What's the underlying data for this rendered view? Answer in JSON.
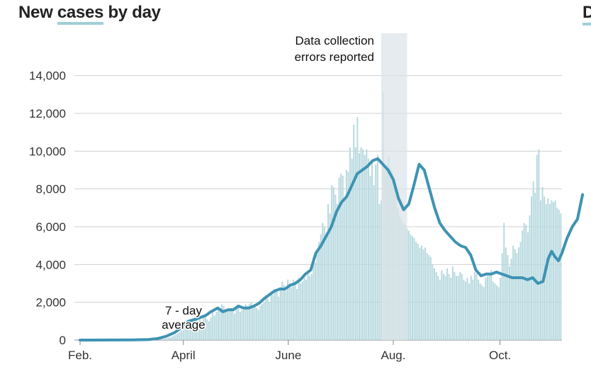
{
  "title": {
    "plain": "New ",
    "highlight": "cases",
    "rest": " by day"
  },
  "next_title_fragment": "D",
  "colors": {
    "bars": "#b7d9df",
    "line": "#3e93b3",
    "shade": "#dbe3e7",
    "grid": "#d0d0d0",
    "text": "#222222"
  },
  "chart_data": {
    "type": "bar",
    "title": "New cases by day",
    "xlabel": "",
    "ylabel": "",
    "ylim": [
      0,
      15000
    ],
    "yticks": [
      0,
      2000,
      4000,
      6000,
      8000,
      10000,
      12000,
      14000
    ],
    "ytick_labels": [
      "0",
      "2,000",
      "4,000",
      "6,000",
      "8,000",
      "10,000",
      "12,000",
      "14,000"
    ],
    "x_domain_days": [
      0,
      280
    ],
    "xticks": [
      {
        "day": 0,
        "label": "Feb."
      },
      {
        "day": 60,
        "label": "April"
      },
      {
        "day": 121,
        "label": "June"
      },
      {
        "day": 182,
        "label": "Aug."
      },
      {
        "day": 244,
        "label": "Oct."
      }
    ],
    "shaded_region": {
      "start_day": 175,
      "end_day": 190,
      "label_lines": [
        "Data collection",
        "errors reported"
      ]
    },
    "line_series": {
      "name": "7-day average",
      "label_lines": [
        "7 - day",
        "average"
      ],
      "points": [
        [
          0,
          0
        ],
        [
          30,
          10
        ],
        [
          40,
          30
        ],
        [
          45,
          80
        ],
        [
          50,
          200
        ],
        [
          55,
          400
        ],
        [
          58,
          600
        ],
        [
          60,
          800
        ],
        [
          63,
          1000
        ],
        [
          67,
          1100
        ],
        [
          70,
          1200
        ],
        [
          73,
          1300
        ],
        [
          76,
          1500
        ],
        [
          80,
          1700
        ],
        [
          83,
          1500
        ],
        [
          86,
          1600
        ],
        [
          89,
          1600
        ],
        [
          92,
          1800
        ],
        [
          95,
          1700
        ],
        [
          98,
          1700
        ],
        [
          101,
          1800
        ],
        [
          104,
          1950
        ],
        [
          107,
          2200
        ],
        [
          110,
          2400
        ],
        [
          113,
          2600
        ],
        [
          116,
          2700
        ],
        [
          119,
          2700
        ],
        [
          122,
          2900
        ],
        [
          125,
          3000
        ],
        [
          128,
          3200
        ],
        [
          131,
          3500
        ],
        [
          134,
          3700
        ],
        [
          137,
          4600
        ],
        [
          140,
          5000
        ],
        [
          143,
          5500
        ],
        [
          146,
          6000
        ],
        [
          149,
          6800
        ],
        [
          152,
          7300
        ],
        [
          155,
          7600
        ],
        [
          158,
          8200
        ],
        [
          161,
          8800
        ],
        [
          164,
          9000
        ],
        [
          167,
          9200
        ],
        [
          170,
          9500
        ],
        [
          173,
          9600
        ],
        [
          176,
          9300
        ],
        [
          179,
          9000
        ],
        [
          182,
          8500
        ],
        [
          185,
          7500
        ],
        [
          188,
          6900
        ],
        [
          191,
          7200
        ],
        [
          194,
          8200
        ],
        [
          197,
          9300
        ],
        [
          200,
          9000
        ],
        [
          203,
          8000
        ],
        [
          206,
          7000
        ],
        [
          209,
          6200
        ],
        [
          212,
          5800
        ],
        [
          215,
          5500
        ],
        [
          218,
          5200
        ],
        [
          221,
          5000
        ],
        [
          224,
          4900
        ],
        [
          227,
          4500
        ],
        [
          230,
          3700
        ],
        [
          233,
          3400
        ],
        [
          236,
          3500
        ],
        [
          239,
          3500
        ],
        [
          242,
          3600
        ],
        [
          245,
          3500
        ],
        [
          248,
          3400
        ],
        [
          251,
          3300
        ],
        [
          254,
          3300
        ],
        [
          257,
          3300
        ],
        [
          260,
          3200
        ],
        [
          263,
          3300
        ],
        [
          266,
          3000
        ],
        [
          269,
          3100
        ],
        [
          272,
          4300
        ],
        [
          274,
          4700
        ],
        [
          276,
          4400
        ],
        [
          278,
          4200
        ],
        [
          280,
          4600
        ],
        [
          283,
          5400
        ],
        [
          286,
          6000
        ],
        [
          289,
          6400
        ],
        [
          292,
          7700
        ]
      ]
    },
    "bar_series": {
      "name": "New cases",
      "note": "daily counts estimated from the bar heights",
      "values": [
        0,
        0,
        0,
        0,
        0,
        0,
        0,
        0,
        0,
        0,
        0,
        0,
        0,
        0,
        0,
        0,
        0,
        0,
        0,
        0,
        0,
        0,
        0,
        0,
        0,
        0,
        0,
        0,
        0,
        0,
        10,
        10,
        10,
        10,
        10,
        10,
        10,
        10,
        20,
        20,
        30,
        30,
        40,
        40,
        50,
        60,
        80,
        100,
        130,
        160,
        200,
        250,
        300,
        350,
        400,
        500,
        600,
        700,
        800,
        900,
        1000,
        1100,
        1200,
        1300,
        900,
        1100,
        1000,
        1300,
        1300,
        1100,
        1000,
        1200,
        1500,
        1300,
        1500,
        1600,
        1700,
        1900,
        1800,
        1600,
        1500,
        1600,
        1700,
        1600,
        1400,
        1800,
        1700,
        1500,
        1600,
        1700,
        1900,
        1800,
        1900,
        2000,
        1700,
        1800,
        1700,
        1600,
        1800,
        1900,
        2000,
        2300,
        2200,
        2000,
        2500,
        2400,
        2700,
        2600,
        2300,
        2800,
        3100,
        2900,
        2600,
        3200,
        3000,
        2800,
        3200,
        3100,
        2700,
        3300,
        3000,
        3100,
        3300,
        3200,
        3600,
        3400,
        3500,
        4400,
        4100,
        4800,
        5200,
        5600,
        6200,
        6000,
        5400,
        7200,
        6700,
        8200,
        8100,
        7700,
        7200,
        8600,
        8800,
        8700,
        7400,
        9000,
        8900,
        10200,
        9600,
        11400,
        10200,
        11800,
        9900,
        10200,
        10100,
        9800,
        10100,
        9600,
        8700,
        9500,
        8200,
        9300,
        9800,
        7200,
        7400,
        13100,
        9000,
        9200,
        9700,
        9100,
        8900,
        8500,
        7700,
        7000,
        6600,
        6400,
        6200,
        6100,
        5900,
        5800,
        5600,
        5500,
        5400,
        5200,
        5100,
        4900,
        5000,
        4800,
        4900,
        4600,
        4500,
        4400,
        4000,
        3800,
        3600,
        3400,
        3200,
        3700,
        3500,
        3400,
        3800,
        3500,
        3300,
        3900,
        3600,
        3400,
        3400,
        3600,
        3500,
        3200,
        3100,
        3300,
        3000,
        3400,
        3200,
        3600,
        3500,
        3200,
        3000,
        2900,
        2800,
        3300,
        3400,
        3500,
        3700,
        3100,
        3000,
        2900,
        2800,
        3300,
        4600,
        6200,
        4900,
        4500,
        3900,
        4300,
        5000,
        4800,
        4600,
        4900,
        5200,
        5800,
        6200,
        6100,
        5700,
        6600,
        7600,
        8400,
        7800,
        9800,
        10100,
        7400,
        8100,
        7600,
        7200,
        7500,
        7200,
        7400,
        7300,
        7400,
        7000,
        6900,
        6700
      ]
    },
    "annotations": [
      "Data collection errors reported",
      "7 - day average"
    ]
  }
}
